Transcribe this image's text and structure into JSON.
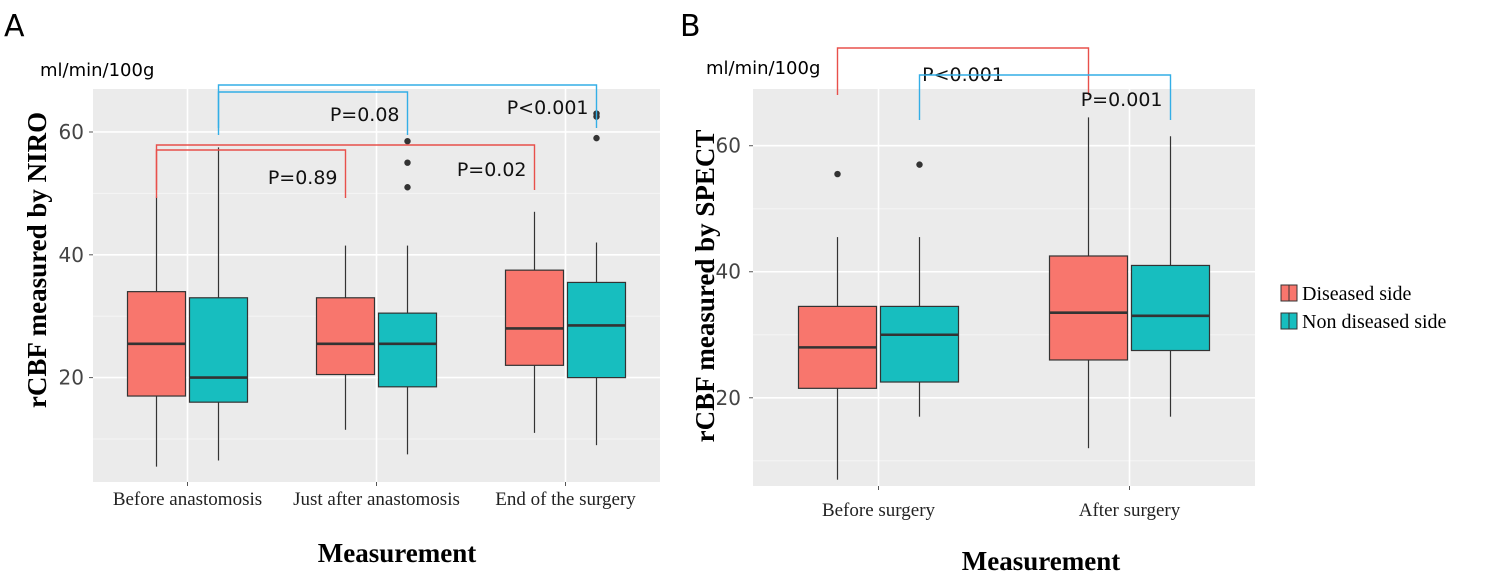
{
  "colors": {
    "diseased": "#F8766D",
    "non_diseased": "#17BEBF",
    "panel_bg": "#EBEBEB",
    "bracket_red": "#E8504B",
    "bracket_blue": "#33AEE6"
  },
  "legend": {
    "items": [
      {
        "label": "Diseased side",
        "color": "#F8766D"
      },
      {
        "label": "Non diseased side",
        "color": "#17BEBF"
      }
    ]
  },
  "chart_data": [
    {
      "type": "boxplot",
      "panel_label": "A",
      "unit": "ml/min/100g",
      "xlabel": "Measurement",
      "ylabel": "rCBF measured by NIRO",
      "ylim": [
        3,
        67
      ],
      "yticks": [
        20,
        40,
        60
      ],
      "categories": [
        "Before anastomosis",
        "Just after anastomosis",
        "End of the surgery"
      ],
      "series": [
        {
          "name": "Diseased side",
          "boxes": [
            {
              "min": 5.5,
              "q1": 17,
              "median": 25.5,
              "q3": 34,
              "max": 49.5,
              "outliers": []
            },
            {
              "min": 11.5,
              "q1": 20.5,
              "median": 25.5,
              "q3": 33,
              "max": 41.5,
              "outliers": []
            },
            {
              "min": 11,
              "q1": 22,
              "median": 28,
              "q3": 37.5,
              "max": 47,
              "outliers": []
            }
          ]
        },
        {
          "name": "Non diseased side",
          "boxes": [
            {
              "min": 6.5,
              "q1": 16,
              "median": 20,
              "q3": 33,
              "max": 57.5,
              "outliers": []
            },
            {
              "min": 7.5,
              "q1": 18.5,
              "median": 25.5,
              "q3": 30.5,
              "max": 41.5,
              "outliers": [
                51,
                55,
                58.5
              ]
            },
            {
              "min": 9,
              "q1": 20,
              "median": 28.5,
              "q3": 35.5,
              "max": 42,
              "outliers": [
                59,
                62.5,
                63
              ]
            }
          ]
        }
      ],
      "annotations": [
        {
          "text": "P=0.89",
          "color": "red",
          "from": [
            0,
            0
          ],
          "to": [
            1,
            0
          ],
          "level": 1,
          "label_at": "center"
        },
        {
          "text": "P=0.02",
          "color": "red",
          "from": [
            0,
            0
          ],
          "to": [
            2,
            0
          ],
          "level": 2,
          "label_at": "end"
        },
        {
          "text": "P=0.08",
          "color": "blue",
          "from": [
            0,
            1
          ],
          "to": [
            1,
            1
          ],
          "level": 3,
          "label_at": "center"
        },
        {
          "text": "P<0.001",
          "color": "blue",
          "from": [
            0,
            1
          ],
          "to": [
            2,
            1
          ],
          "level": 4,
          "label_at": "end"
        }
      ]
    },
    {
      "type": "boxplot",
      "panel_label": "B",
      "unit": "ml/min/100g",
      "xlabel": "Measurement",
      "ylabel": "rCBF measured by SPECT",
      "ylim": [
        6,
        69
      ],
      "yticks": [
        20,
        40,
        60
      ],
      "categories": [
        "Before surgery",
        "After surgery"
      ],
      "series": [
        {
          "name": "Diseased side",
          "boxes": [
            {
              "min": 7,
              "q1": 21.5,
              "median": 28,
              "q3": 34.5,
              "max": 45.5,
              "outliers": [
                55.5
              ]
            },
            {
              "min": 12,
              "q1": 26,
              "median": 33.5,
              "q3": 42.5,
              "max": 64.5,
              "outliers": []
            }
          ]
        },
        {
          "name": "Non diseased side",
          "boxes": [
            {
              "min": 17,
              "q1": 22.5,
              "median": 30,
              "q3": 34.5,
              "max": 45.5,
              "outliers": [
                57
              ]
            },
            {
              "min": 17,
              "q1": 27.5,
              "median": 33,
              "q3": 41,
              "max": 61.5,
              "outliers": []
            }
          ]
        }
      ],
      "annotations": [
        {
          "text": "P<0.001",
          "color": "red",
          "from": [
            0,
            0
          ],
          "to": [
            1,
            0
          ],
          "level": 2,
          "label_at": "center"
        },
        {
          "text": "P=0.001",
          "color": "blue",
          "from": [
            0,
            1
          ],
          "to": [
            1,
            1
          ],
          "level": 1,
          "label_at": "end"
        }
      ]
    }
  ]
}
